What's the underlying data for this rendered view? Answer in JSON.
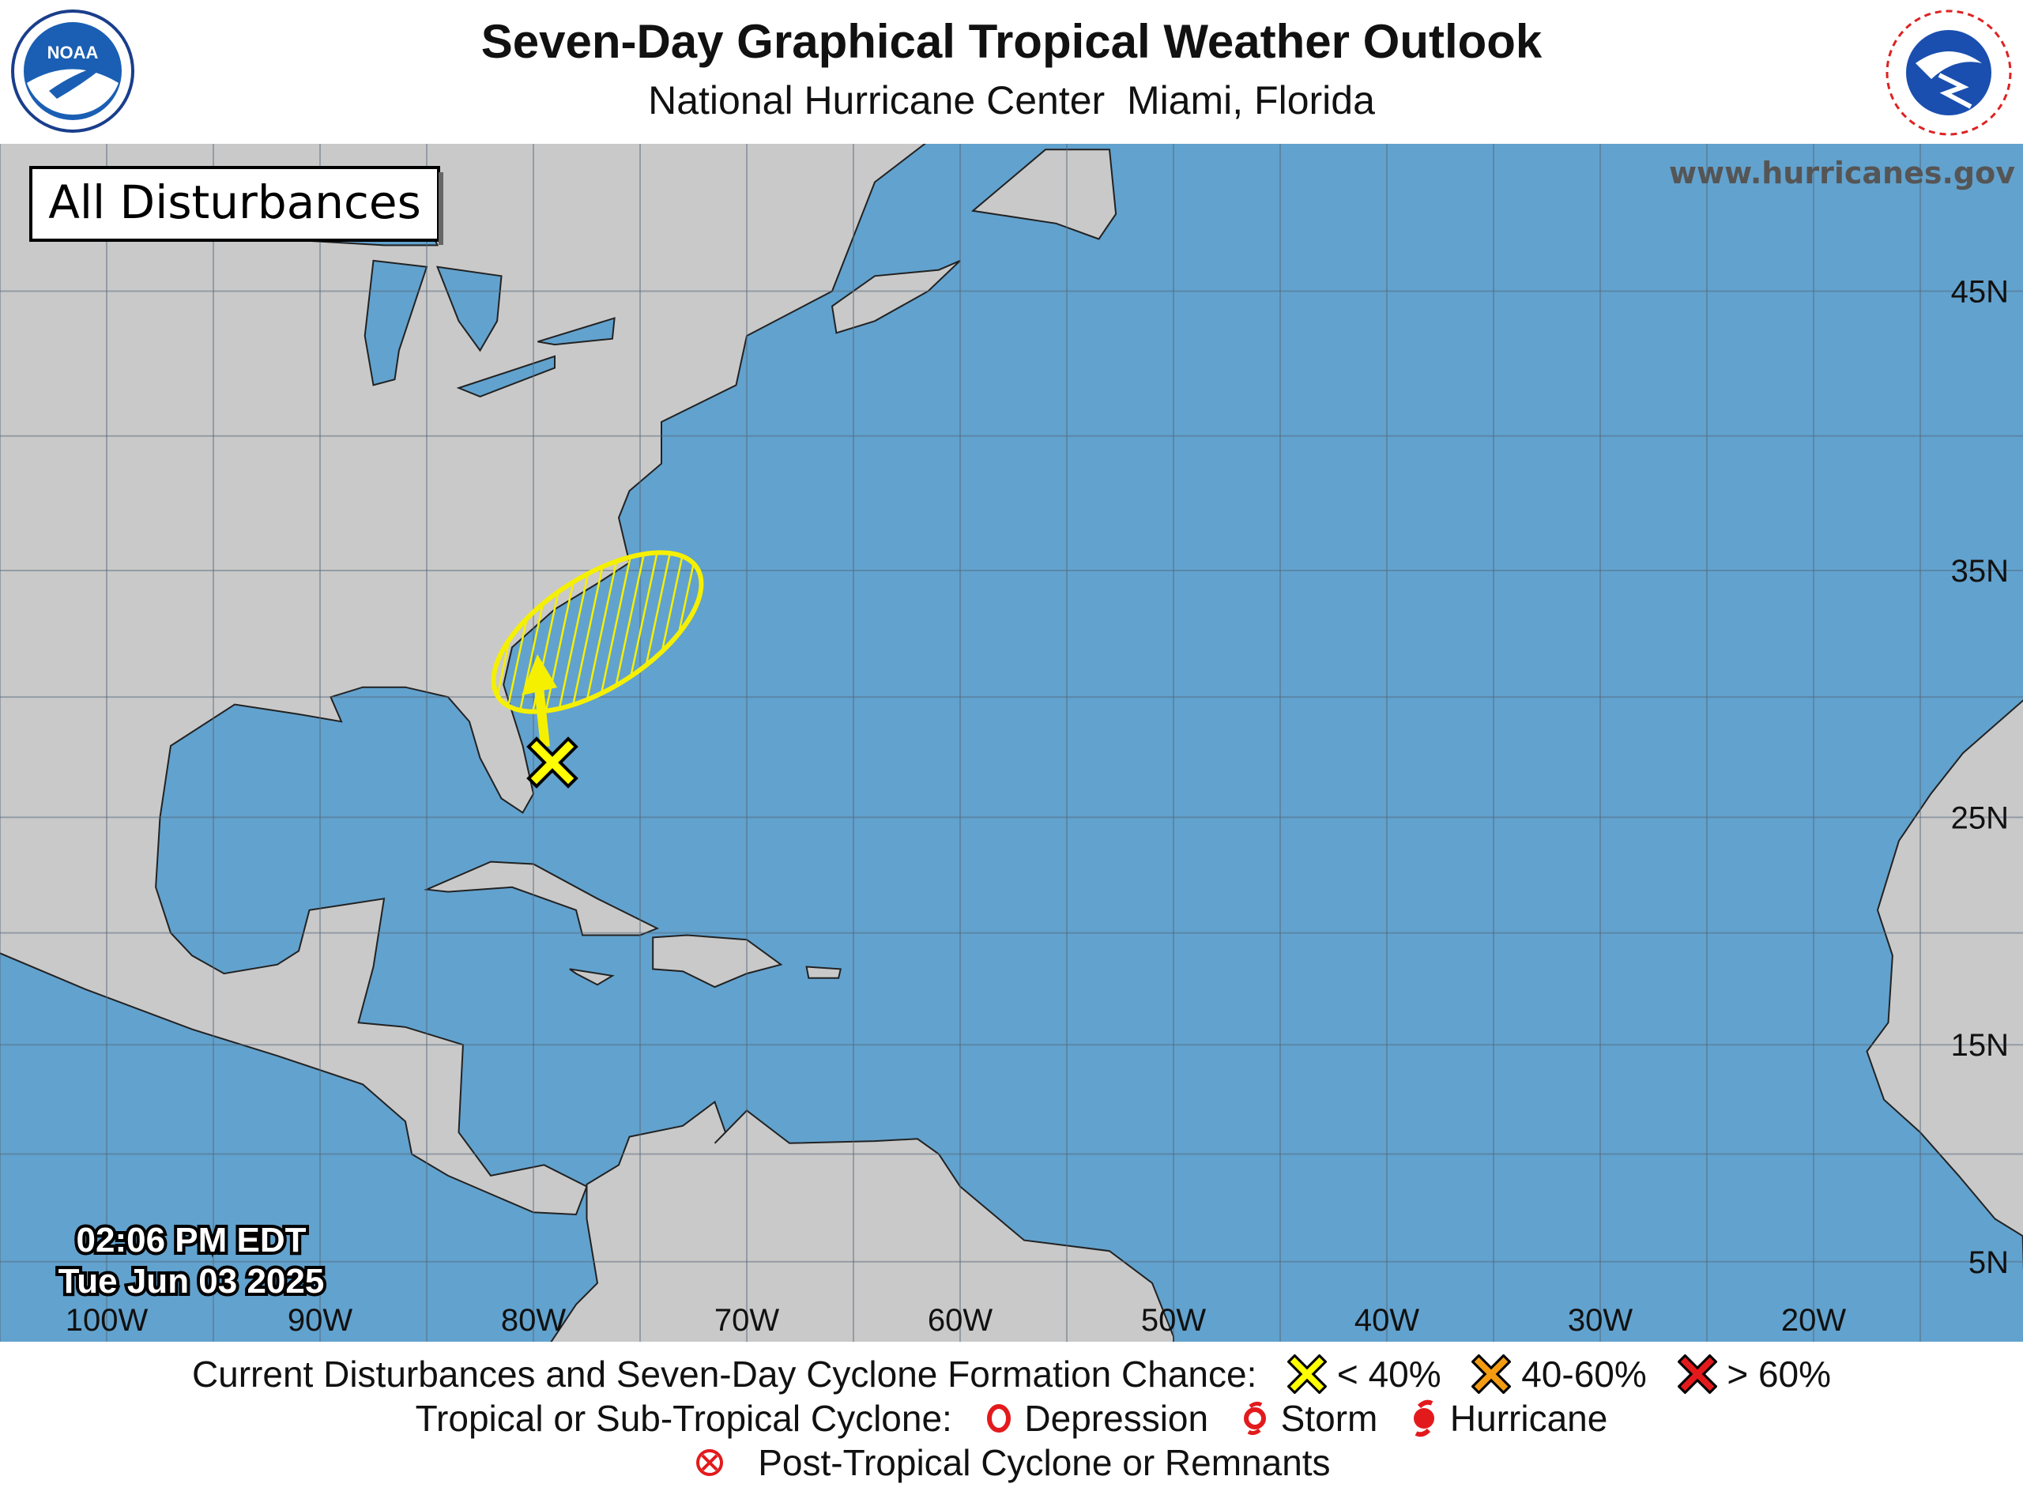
{
  "header": {
    "title": "Seven-Day Graphical Tropical Weather Outlook",
    "subtitle": "National Hurricane Center  Miami, Florida",
    "left_logo": "NOAA",
    "right_logo": "NATIONAL WEATHER SERVICE"
  },
  "map": {
    "panel_label": "All Disturbances",
    "website": "www.hurricanes.gov",
    "timestamp_time": "02:06 PM EDT",
    "timestamp_date": "Tue Jun 03 2025",
    "lon_labels": [
      "100W",
      "90W",
      "80W",
      "70W",
      "60W",
      "50W",
      "40W",
      "30W",
      "20W"
    ],
    "lat_labels": [
      "45N",
      "35N",
      "25N",
      "15N",
      "5N"
    ],
    "colors": {
      "ocean": "#62A2CE",
      "land": "#C9C9C9",
      "disturbance": "#F5F000"
    },
    "disturbances": [
      {
        "formation_chance": "< 40%",
        "marker": "yellow-x",
        "has_track_arrow": true,
        "has_hatched_area": true
      }
    ]
  },
  "legend": {
    "row1_label": "Current Disturbances and Seven-Day Cyclone Formation Chance:",
    "low": "< 40%",
    "medium": "40-60%",
    "high": "> 60%",
    "row2_label": "Tropical or Sub-Tropical Cyclone:",
    "depression": "Depression",
    "storm": "Storm",
    "hurricane": "Hurricane",
    "post_tropical": "Post-Tropical Cyclone or Remnants",
    "colors": {
      "low": "#FFFF00",
      "medium": "#F39C12",
      "high": "#E31A1C",
      "cyclone": "#E31A1C"
    }
  }
}
